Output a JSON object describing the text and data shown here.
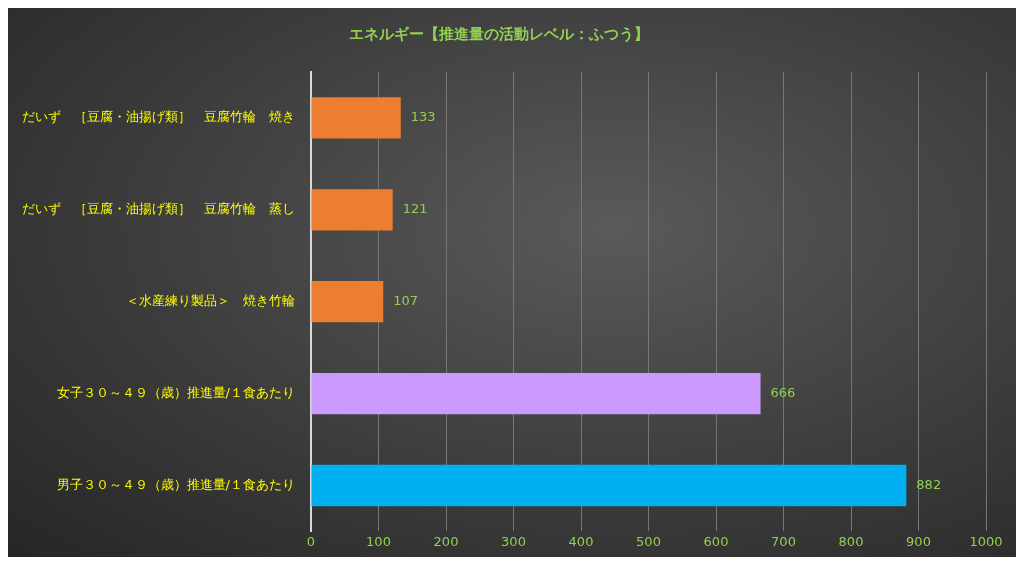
{
  "chart_data": {
    "type": "bar",
    "orientation": "horizontal",
    "title": "エネルギー【推進量の活動レベル：ふつう】",
    "categories": [
      "だいず　［豆腐・油揚げ類］　豆腐竹輪　焼き",
      "だいず　［豆腐・油揚げ類］　豆腐竹輪　蒸し",
      "＜水産練り製品＞　焼き竹輪",
      "女子３０～４９（歳）推進量/１食あたり",
      "男子３０～４９（歳）推進量/１食あたり"
    ],
    "values": [
      133,
      121,
      107,
      666,
      882
    ],
    "colors": [
      "#ed7d31",
      "#ed7d31",
      "#ed7d31",
      "#cc99ff",
      "#00b0f0"
    ],
    "xlim": [
      0,
      1000
    ],
    "xticks": [
      0,
      100,
      200,
      300,
      400,
      500,
      600,
      700,
      800,
      900,
      1000
    ],
    "grid": "x",
    "data_labels": true,
    "legend": false
  }
}
